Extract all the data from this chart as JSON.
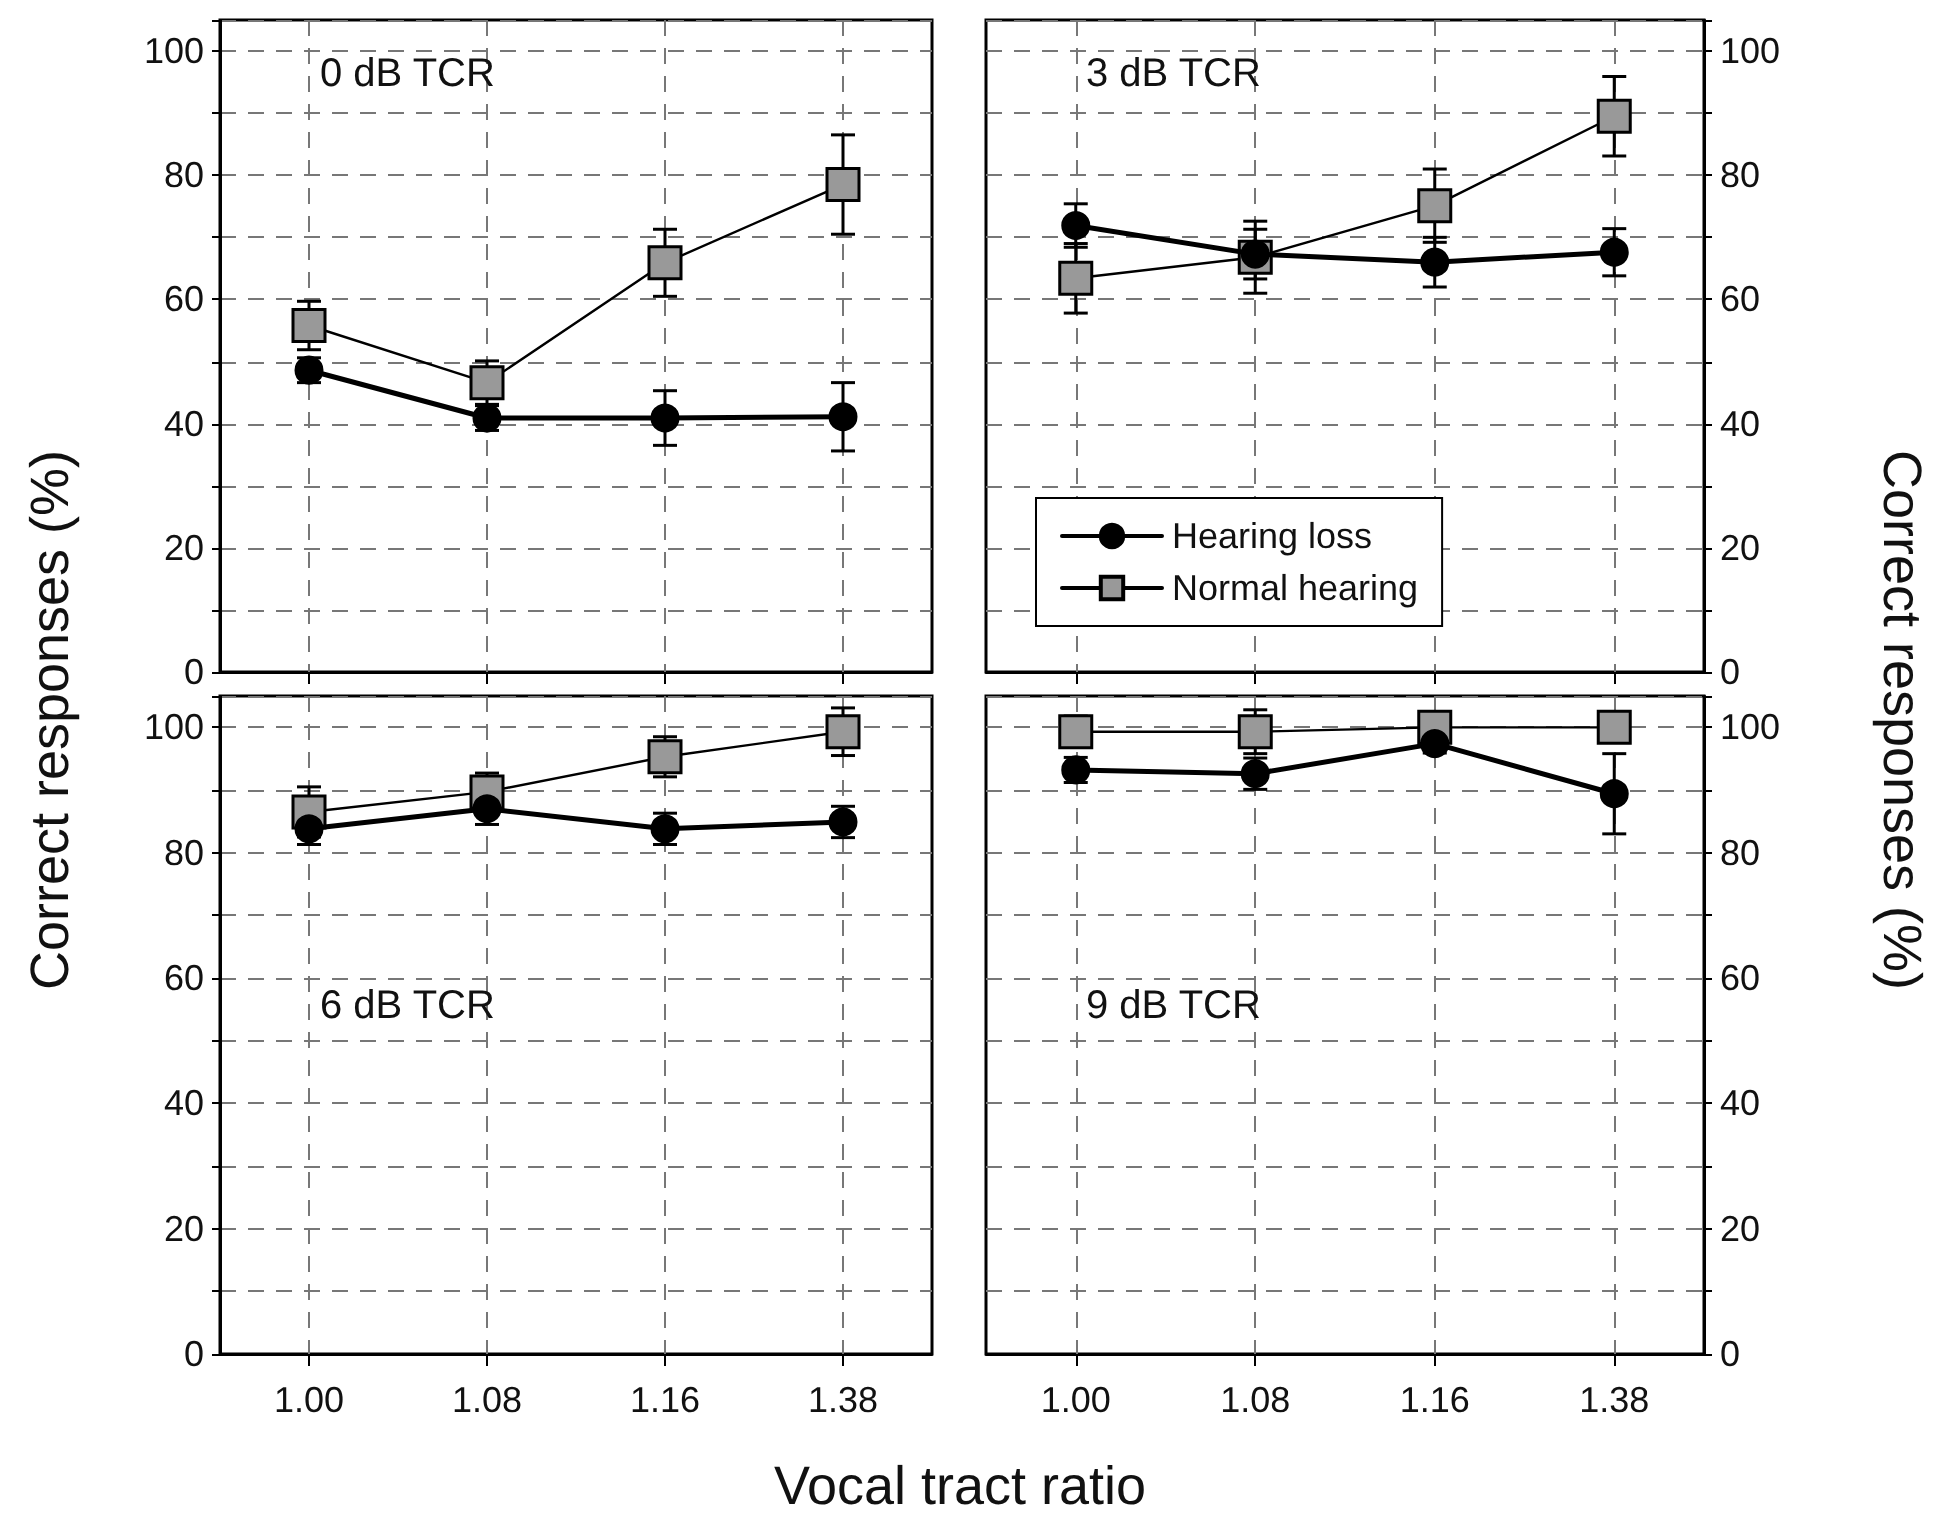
{
  "chart_data": [
    {
      "type": "line",
      "title": "0 dB TCR",
      "ylabel": "Correct responses (%)",
      "categories": [
        "1.00",
        "1.08",
        "1.16",
        "1.38"
      ],
      "ylim": [
        0,
        105
      ],
      "yticks": [
        0,
        20,
        40,
        60,
        80,
        100
      ],
      "grid": true,
      "tick_labels": "y",
      "series": [
        {
          "color": "#000000",
          "marker": "circle",
          "values": [
            48.6,
            40.9,
            40.9,
            41.1
          ],
          "errors": [
            2,
            2,
            4.4,
            5.5
          ]
        },
        {
          "color": "#999999",
          "marker": "square",
          "values": [
            55.8,
            46.6,
            65.9,
            78.5
          ],
          "errors": [
            3.9,
            3.5,
            5.4,
            8
          ]
        }
      ]
    },
    {
      "type": "line",
      "title": "3 dB TCR",
      "y2label": "Correct responses (%)",
      "categories": [
        "1.00",
        "1.08",
        "1.16",
        "1.38"
      ],
      "y2lim": [
        0,
        105
      ],
      "y2ticks": [
        0,
        20,
        40,
        60,
        80,
        100
      ],
      "grid": true,
      "tick_labels": "y",
      "legend": "bottom left",
      "series": [
        {
          "name": "Hearing loss",
          "axis": "y2",
          "color": "#000000",
          "marker": "circle",
          "values": [
            71.9,
            67.3,
            66,
            67.6
          ],
          "errors": [
            3.5,
            4,
            4,
            3.8
          ]
        },
        {
          "name": "Normal hearing",
          "axis": "y2",
          "color": "#999999",
          "marker": "square",
          "values": [
            63.4,
            66.8,
            75.1,
            89.5
          ],
          "errors": [
            5.6,
            5.8,
            5.9,
            6.4
          ]
        }
      ]
    },
    {
      "type": "line",
      "title": "6 dB TCR",
      "xlabel": "Vocal tract ratio",
      "categories": [
        "1.00",
        "1.08",
        "1.16",
        "1.38"
      ],
      "ylim": [
        0,
        105
      ],
      "yticks": [
        0,
        20,
        40,
        60,
        80,
        100
      ],
      "grid": true,
      "series": [
        {
          "color": "#000000",
          "marker": "circle",
          "values": [
            83.8,
            87,
            83.8,
            84.9
          ],
          "errors": [
            2.5,
            2.5,
            2.5,
            2.5
          ]
        },
        {
          "color": "#999999",
          "marker": "square",
          "values": [
            86.5,
            89.7,
            95.3,
            99.3
          ],
          "errors": [
            4,
            3,
            3.2,
            3.8
          ]
        }
      ]
    },
    {
      "type": "line",
      "title": "9 dB TCR",
      "categories": [
        "1.00",
        "1.08",
        "1.16",
        "1.38"
      ],
      "y2lim": [
        0,
        105
      ],
      "y2ticks": [
        0,
        20,
        40,
        60,
        80,
        100
      ],
      "grid": true,
      "series": [
        {
          "axis": "y2",
          "color": "#000000",
          "marker": "circle",
          "values": [
            93.2,
            92.6,
            97.4,
            89.4
          ],
          "errors": [
            2,
            2.5,
            1.5,
            6.4
          ]
        },
        {
          "axis": "y2",
          "color": "#999999",
          "marker": "square",
          "values": [
            99.3,
            99.3,
            100,
            100
          ],
          "errors": [
            2.5,
            3.5,
            null,
            null
          ]
        }
      ]
    }
  ]
}
